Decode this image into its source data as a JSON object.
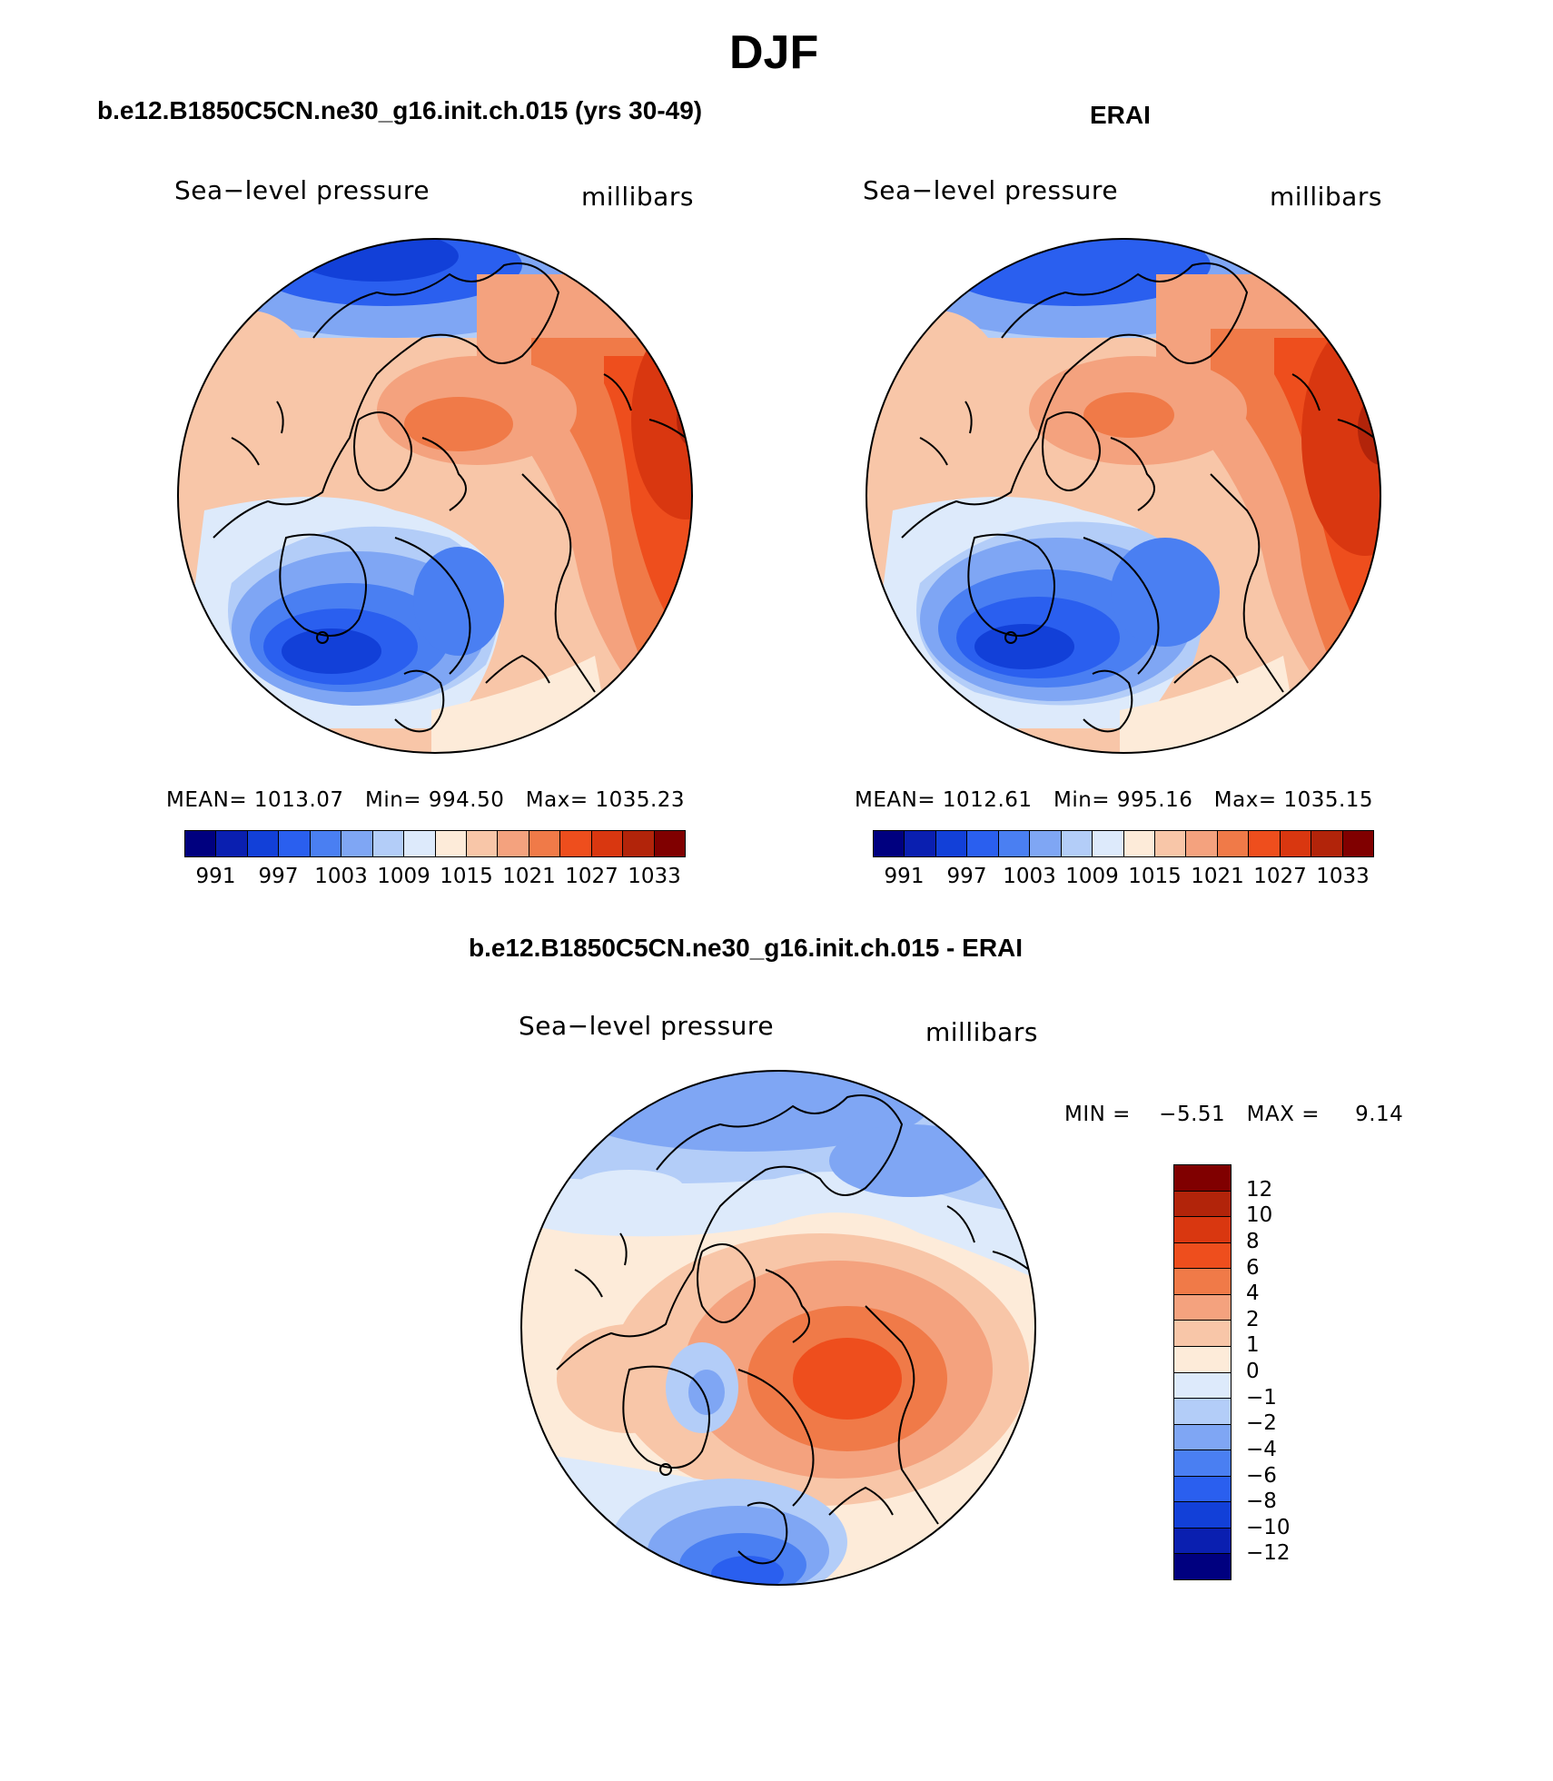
{
  "figure": {
    "title": "DJF"
  },
  "panels": [
    {
      "heading": "b.e12.B1850C5CN.ne30_g16.init.ch.015 (yrs 30-49)",
      "variable": "Sea−level pressure",
      "units": "millibars",
      "mean_label": "MEAN=",
      "mean": "1013.07",
      "min_label": "Min=",
      "min": "994.50",
      "max_label": "Max=",
      "max": "1035.23"
    },
    {
      "heading": "ERAI",
      "variable": "Sea−level pressure",
      "units": "millibars",
      "mean_label": "MEAN=",
      "mean": "1012.61",
      "min_label": "Min=",
      "min": "995.16",
      "max_label": "Max=",
      "max": "1035.15"
    },
    {
      "heading": "b.e12.B1850C5CN.ne30_g16.init.ch.015 - ERAI",
      "variable": "Sea−level pressure",
      "units": "millibars",
      "min_label": "MIN =",
      "min": "−5.51",
      "max_label": "MAX =",
      "max": "9.14"
    }
  ],
  "colorbars": {
    "absolute": {
      "colors": [
        "#00007f",
        "#0a1fb0",
        "#1240d8",
        "#2a5fef",
        "#4a7ff2",
        "#7fa6f4",
        "#b3cdf8",
        "#ddeafb",
        "#fdebd9",
        "#f8c6a8",
        "#f4a27e",
        "#f07a48",
        "#ee4e1d",
        "#d93710",
        "#b2240a",
        "#800000"
      ],
      "labels": [
        "991",
        "997",
        "1003",
        "1009",
        "1015",
        "1021",
        "1027",
        "1033"
      ]
    },
    "difference": {
      "colors": [
        "#800000",
        "#b2240a",
        "#d93710",
        "#ee4e1d",
        "#f07a48",
        "#f4a27e",
        "#f8c6a8",
        "#fdebd9",
        "#ddeafb",
        "#b3cdf8",
        "#7fa6f4",
        "#4a7ff2",
        "#2a5fef",
        "#1240d8",
        "#0a1fb0",
        "#00007f"
      ],
      "labels": [
        "12",
        "10",
        "8",
        "6",
        "4",
        "2",
        "1",
        "0",
        "−1",
        "−2",
        "−4",
        "−6",
        "−8",
        "−10",
        "−12"
      ]
    }
  }
}
